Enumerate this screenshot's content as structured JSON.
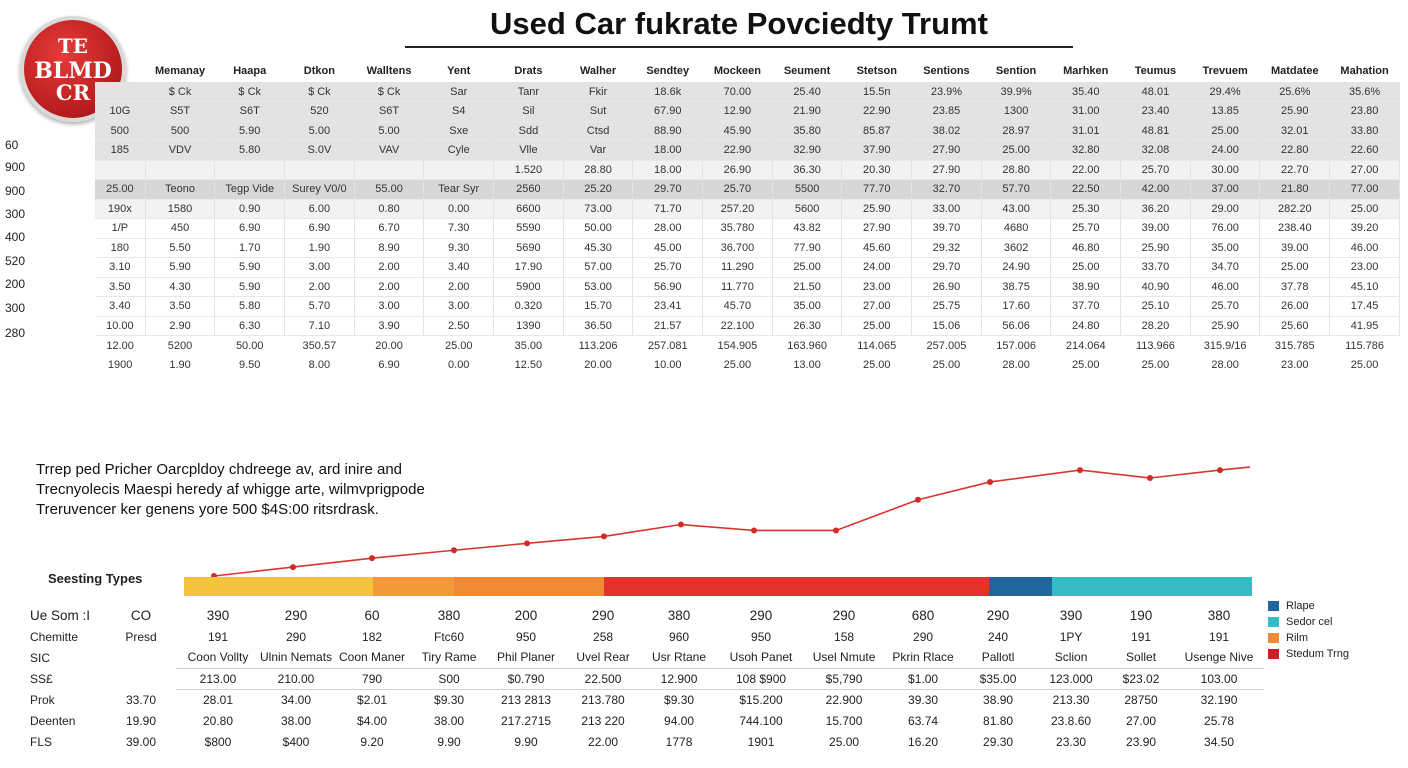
{
  "logo": {
    "line1": "TE",
    "line2": "BLMD",
    "line3": "CR"
  },
  "title": "Used Car fukrate Povciedty Trumt",
  "left_axis": [
    "60",
    "900",
    "900",
    "300",
    "400",
    "520",
    "200",
    "300",
    "280"
  ],
  "table_top": {
    "headers": [
      "Memanay",
      "Haapa",
      "Dtkon",
      "Walltens",
      "Yent",
      "Drats",
      "Walher",
      "Sendtey",
      "Mockeen",
      "Seument",
      "Stetson",
      "Sentions",
      "Sention",
      "Marhken",
      "Teumus",
      "Trevuem",
      "Matdatee",
      "Mahation"
    ],
    "rows": [
      {
        "style": "shade",
        "cells": [
          "",
          "$ Ck",
          "$ Ck",
          "$ Ck",
          "$ Ck",
          "Sar",
          "Tanr",
          "Fkir",
          "18.6k",
          "70.00",
          "25.40",
          "15.5n",
          "23.9%",
          "39.9%",
          "35.40",
          "48.01",
          "29.4%",
          "25.6%",
          "35.6%"
        ]
      },
      {
        "style": "shade",
        "cells": [
          "10G",
          "S5T",
          "S6T",
          "520",
          "S6T",
          "S4",
          "Sil",
          "Sut",
          "67.90",
          "12.90",
          "21.90",
          "22.90",
          "23.85",
          "1300",
          "31.00",
          "23.40",
          "13.85",
          "25.90",
          "23.80"
        ]
      },
      {
        "style": "shade",
        "cells": [
          "500",
          "500",
          "5.90",
          "5.00",
          "5.00",
          "Sxe",
          "Sdd",
          "Ctsd",
          "88.90",
          "45.90",
          "35.80",
          "85.87",
          "38.02",
          "28.97",
          "31.01",
          "48.81",
          "25.00",
          "32.01",
          "33.80"
        ]
      },
      {
        "style": "shade",
        "cells": [
          "185",
          "VDV",
          "5.80",
          "S.0V",
          "VAV",
          "Cyle",
          "Vlle",
          "Var",
          "18.00",
          "22.90",
          "32.90",
          "37.90",
          "27.90",
          "25.00",
          "32.80",
          "32.08",
          "24.00",
          "22.80",
          "22.60"
        ]
      },
      {
        "style": "light",
        "cells": [
          "",
          "",
          "",
          "",
          "",
          "",
          "1.520",
          "28.80",
          "18.00",
          "26.90",
          "36.30",
          "20.30",
          "27.90",
          "28.80",
          "22.00",
          "25.70",
          "30.00",
          "22.70",
          "27.00"
        ]
      },
      {
        "style": "shade2",
        "cells": [
          "25.00",
          "Teono",
          "Tegp Vide",
          "Surey V0/0",
          "55.00",
          "Tear Syr",
          "2560",
          "25.20",
          "29.70",
          "25.70",
          "5500",
          "77.70",
          "32.70",
          "57.70",
          "22.50",
          "42.00",
          "37.00",
          "21.80",
          "77.00"
        ]
      },
      {
        "style": "light",
        "cells": [
          "190x",
          "1580",
          "0.90",
          "6.00",
          "0.80",
          "0.00",
          "6600",
          "73.00",
          "71.70",
          "257.20",
          "5600",
          "25.90",
          "33.00",
          "43.00",
          "25.30",
          "36.20",
          "29.00",
          "282.20",
          "25.00"
        ]
      },
      {
        "style": "plain",
        "cells": [
          "1/P",
          "450",
          "6.90",
          "6.90",
          "6.70",
          "7.30",
          "5590",
          "50.00",
          "28.00",
          "35.780",
          "43.82",
          "27.90",
          "39.70",
          "4680",
          "25.70",
          "39.00",
          "76.00",
          "238.40",
          "39.20"
        ]
      },
      {
        "style": "plain",
        "cells": [
          "180",
          "5.50",
          "1.70",
          "1.90",
          "8.90",
          "9.30",
          "5690",
          "45.30",
          "45.00",
          "36.700",
          "77.90",
          "45.60",
          "29.32",
          "3602",
          "46.80",
          "25.90",
          "35.00",
          "39.00",
          "46.00"
        ]
      },
      {
        "style": "plain",
        "cells": [
          "3.10",
          "5.90",
          "5.90",
          "3.00",
          "2.00",
          "3.40",
          "17.90",
          "57.00",
          "25.70",
          "11.290",
          "25.00",
          "24.00",
          "29.70",
          "24.90",
          "25.00",
          "33.70",
          "34.70",
          "25.00",
          "23.00"
        ]
      },
      {
        "style": "plain",
        "cells": [
          "3.50",
          "4.30",
          "5.90",
          "2.00",
          "2.00",
          "2.00",
          "5900",
          "53.00",
          "56.90",
          "11.770",
          "21.50",
          "23.00",
          "26.90",
          "38.75",
          "38.90",
          "40.90",
          "46.00",
          "37.78",
          "45.10"
        ]
      },
      {
        "style": "plain",
        "cells": [
          "3.40",
          "3.50",
          "5.80",
          "5.70",
          "3.00",
          "3.00",
          "0.320",
          "15.70",
          "23.41",
          "45.70",
          "35.00",
          "27.00",
          "25.75",
          "17.60",
          "37.70",
          "25.10",
          "25.70",
          "26.00",
          "17.45"
        ]
      },
      {
        "style": "plain",
        "cells": [
          "10.00",
          "2.90",
          "6.30",
          "7.10",
          "3.90",
          "2.50",
          "1390",
          "36.50",
          "21.57",
          "22.100",
          "26.30",
          "25.00",
          "15.06",
          "56.06",
          "24.80",
          "28.20",
          "25.90",
          "25.60",
          "41.95"
        ]
      },
      {
        "style": "none",
        "cells": [
          "12.00",
          "5200",
          "50.00",
          "350.57",
          "20.00",
          "25.00",
          "35.00",
          "113.206",
          "257.081",
          "154.905",
          "163.960",
          "114.065",
          "257.005",
          "157.006",
          "214.064",
          "113.966",
          "315.9/16",
          "315.785",
          "115.786"
        ]
      },
      {
        "style": "none",
        "cells": [
          "1900",
          "1.90",
          "9.50",
          "8.00",
          "6.90",
          "0.00",
          "12.50",
          "20.00",
          "10.00",
          "25.00",
          "13.00",
          "25.00",
          "25.00",
          "28.00",
          "25.00",
          "25.00",
          "28.00",
          "23.00",
          "25.00"
        ]
      }
    ]
  },
  "description": [
    "Trrep ped Pricher Oarcpldoy chdreege av, ard inire and",
    "Trecnyolecis Maespi heredy af whigge arte, wilmvprigpode",
    "Treruvencer ker genens yore 500 $4S:00 ritsrdrask."
  ],
  "chart_data": {
    "type": "line",
    "series": [
      {
        "values": [
          0.0,
          0.9,
          1.8,
          2.6,
          3.3,
          4.0,
          5.2,
          4.6,
          4.6,
          7.7,
          9.5,
          10.7,
          9.9,
          10.7
        ]
      }
    ],
    "band": {
      "label": "Seesting Types",
      "segments": [
        {
          "color": "#f5c33b",
          "weight": 189
        },
        {
          "color": "#f29a3a",
          "weight": 81
        },
        {
          "color": "#ef8b37",
          "weight": 150
        },
        {
          "color": "#e4312c",
          "weight": 385
        },
        {
          "color": "#21659d",
          "weight": 63
        },
        {
          "color": "#35bcc4",
          "weight": 200
        }
      ]
    },
    "legend": [
      {
        "label": "Rlape",
        "color": "#21659d"
      },
      {
        "label": "Sedor cel",
        "color": "#35bcc4"
      },
      {
        "label": "Rilm",
        "color": "#ef8b37"
      },
      {
        "label": "Stedum Trng",
        "color": "#c8202a"
      }
    ]
  },
  "table_bottom": {
    "rows": [
      {
        "label": "Ue Som :I",
        "big": true,
        "lined": false,
        "cells": [
          "CO",
          "390",
          "290",
          "60",
          "380",
          "200",
          "290",
          "380",
          "290",
          "290",
          "680",
          "290",
          "390",
          "190",
          "380"
        ]
      },
      {
        "label": "Chemitte",
        "big": false,
        "lined": false,
        "cells": [
          "Presd",
          "191",
          "290",
          "182",
          "Ftc60",
          "950",
          "258",
          "960",
          "950",
          "158",
          "290",
          "240",
          "1PY",
          "191",
          "191"
        ]
      },
      {
        "label": "SIC",
        "big": false,
        "lined": true,
        "cells": [
          "",
          "Coon Vollty",
          "Ulnin Nemats",
          "Coon Maner",
          "Tiry Rame",
          "Phil Planer",
          "Uvel Rear",
          "Usr Rtane",
          "Usoh Panet",
          "Usel Nmute",
          "Pkrin Rlace",
          "Pallotl",
          "Sclion",
          "Sollet",
          "Usenge Nive"
        ]
      },
      {
        "label": "SS£",
        "big": false,
        "lined": true,
        "cells": [
          "",
          "213.00",
          "210.00",
          "790",
          "S00",
          "$0.790",
          "22.500",
          "12.900",
          "108 $900",
          "$5,790",
          "$1.00",
          "$35.00",
          "123.000",
          "$23.02",
          "103.00"
        ]
      },
      {
        "label": "Prok",
        "big": false,
        "lined": false,
        "cells": [
          "33.70",
          "28.01",
          "34.00",
          "$2.01",
          "$9.30",
          "213 2813",
          "213.780",
          "$9.30",
          "$15.200",
          "22.900",
          "39.30",
          "38.90",
          "213.30",
          "28750",
          "32.190"
        ]
      },
      {
        "label": "Deenten",
        "big": false,
        "lined": false,
        "cells": [
          "19.90",
          "20.80",
          "38.00",
          "$4.00",
          "38.00",
          "217.2715",
          "213 220",
          "94.00",
          "744.100",
          "15.700",
          "63.74",
          "81.80",
          "23.8.60",
          "27.00",
          "25.78"
        ]
      },
      {
        "label": "FLS",
        "big": false,
        "lined": false,
        "cells": [
          "39.00",
          "$800",
          "$400",
          "9.20",
          "9.90",
          "9.90",
          "22.00",
          "1778",
          "1901",
          "25.00",
          "16.20",
          "29.30",
          "23.30",
          "23.90",
          "34.50"
        ]
      }
    ]
  }
}
